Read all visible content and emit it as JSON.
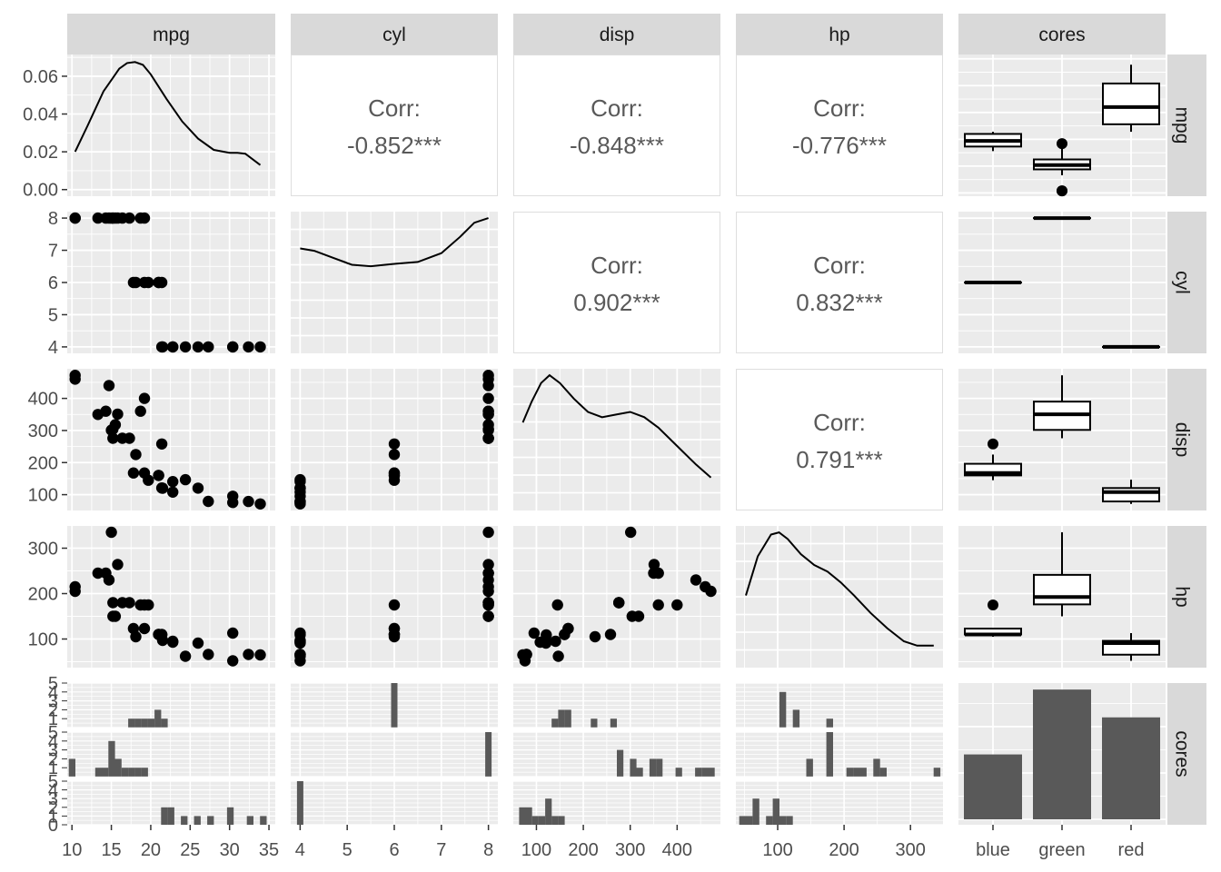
{
  "chart_data": {
    "type": "scatter",
    "plot_kind": "pairs",
    "variables": [
      "mpg",
      "cyl",
      "disp",
      "hp",
      "cores"
    ],
    "strip_labels_top": [
      "mpg",
      "cyl",
      "disp",
      "hp",
      "cores"
    ],
    "strip_labels_right": [
      "mpg",
      "cyl",
      "disp",
      "hp",
      "cores"
    ],
    "axes": {
      "mpg": {
        "range": [
          9.4,
          35.8
        ],
        "ticks": [
          10,
          15,
          20,
          25,
          30,
          35
        ],
        "tick_labels": [
          "10",
          "15",
          "20",
          "25",
          "30",
          "35"
        ]
      },
      "cyl": {
        "range": [
          3.8,
          8.2
        ],
        "ticks": [
          4,
          5,
          6,
          7,
          8
        ],
        "tick_labels": [
          "4",
          "5",
          "6",
          "7",
          "8"
        ]
      },
      "disp": {
        "range": [
          50.7,
          492.3
        ],
        "ticks": [
          100,
          200,
          300,
          400
        ],
        "tick_labels": [
          "100",
          "200",
          "300",
          "400"
        ]
      },
      "hp": {
        "range": [
          37,
          349
        ],
        "ticks": [
          100,
          200,
          300
        ],
        "tick_labels": [
          "100",
          "200",
          "300"
        ]
      },
      "cores": {
        "categories": [
          "blue",
          "green",
          "red"
        ]
      },
      "density_y": {
        "range": [
          -0.0035,
          0.0715
        ],
        "ticks": [
          0,
          0.02,
          0.04,
          0.06
        ],
        "tick_labels": [
          "0.00",
          "0.02",
          "0.04",
          "0.06"
        ]
      },
      "count_y": {
        "range": [
          0,
          5
        ],
        "ticks": [
          0,
          1,
          2,
          3,
          4,
          5
        ],
        "tick_labels": [
          "0",
          "1",
          "2",
          "3",
          "4",
          "5"
        ]
      }
    },
    "correlations": [
      {
        "pair": [
          "cyl",
          "mpg"
        ],
        "label": "Corr:",
        "value": "-0.852***"
      },
      {
        "pair": [
          "disp",
          "mpg"
        ],
        "label": "Corr:",
        "value": "-0.848***"
      },
      {
        "pair": [
          "hp",
          "mpg"
        ],
        "label": "Corr:",
        "value": "-0.776***"
      },
      {
        "pair": [
          "disp",
          "cyl"
        ],
        "label": "Corr:",
        "value": "0.902***"
      },
      {
        "pair": [
          "hp",
          "cyl"
        ],
        "label": "Corr:",
        "value": "0.832***"
      },
      {
        "pair": [
          "hp",
          "disp"
        ],
        "label": "Corr:",
        "value": "0.791***"
      }
    ],
    "densities": {
      "mpg": [
        [
          10.4,
          0.02
        ],
        [
          12,
          0.034
        ],
        [
          14,
          0.052
        ],
        [
          16,
          0.064
        ],
        [
          17,
          0.067
        ],
        [
          18,
          0.0675
        ],
        [
          19,
          0.066
        ],
        [
          20,
          0.061
        ],
        [
          22,
          0.048
        ],
        [
          24,
          0.036
        ],
        [
          26,
          0.027
        ],
        [
          28,
          0.021
        ],
        [
          30,
          0.0195
        ],
        [
          31,
          0.0195
        ],
        [
          32,
          0.019
        ],
        [
          33.9,
          0.013
        ]
      ],
      "cyl": [
        [
          4,
          0.21
        ],
        [
          4.3,
          0.205
        ],
        [
          4.7,
          0.19
        ],
        [
          5.1,
          0.175
        ],
        [
          5.5,
          0.172
        ],
        [
          6,
          0.177
        ],
        [
          6.5,
          0.181
        ],
        [
          7,
          0.2
        ],
        [
          7.4,
          0.235
        ],
        [
          7.7,
          0.265
        ],
        [
          8,
          0.275
        ]
      ],
      "disp": [
        [
          71.1,
          0.0031
        ],
        [
          90,
          0.0039
        ],
        [
          110,
          0.0046
        ],
        [
          128,
          0.0049
        ],
        [
          150,
          0.0046
        ],
        [
          180,
          0.004
        ],
        [
          210,
          0.0035
        ],
        [
          240,
          0.0033
        ],
        [
          270,
          0.0034
        ],
        [
          300,
          0.0035
        ],
        [
          330,
          0.0033
        ],
        [
          360,
          0.0029
        ],
        [
          400,
          0.0022
        ],
        [
          440,
          0.0015
        ],
        [
          472,
          0.001
        ]
      ],
      "hp": [
        [
          52,
          0.003
        ],
        [
          70,
          0.0048
        ],
        [
          90,
          0.0058
        ],
        [
          102,
          0.0059
        ],
        [
          115,
          0.0056
        ],
        [
          135,
          0.0049
        ],
        [
          155,
          0.0044
        ],
        [
          175,
          0.0041
        ],
        [
          195,
          0.0036
        ],
        [
          215,
          0.003
        ],
        [
          240,
          0.0022
        ],
        [
          265,
          0.0015
        ],
        [
          290,
          0.0009
        ],
        [
          310,
          0.0007
        ],
        [
          335,
          0.0007
        ]
      ]
    },
    "points": [
      {
        "mpg": 21.0,
        "cyl": 6,
        "disp": 160,
        "hp": 110,
        "cores": "blue"
      },
      {
        "mpg": 21.0,
        "cyl": 6,
        "disp": 160,
        "hp": 110,
        "cores": "blue"
      },
      {
        "mpg": 22.8,
        "cyl": 4,
        "disp": 108,
        "hp": 93,
        "cores": "red"
      },
      {
        "mpg": 21.4,
        "cyl": 6,
        "disp": 258,
        "hp": 110,
        "cores": "blue"
      },
      {
        "mpg": 18.7,
        "cyl": 8,
        "disp": 360,
        "hp": 175,
        "cores": "green"
      },
      {
        "mpg": 18.1,
        "cyl": 6,
        "disp": 225,
        "hp": 105,
        "cores": "blue"
      },
      {
        "mpg": 14.3,
        "cyl": 8,
        "disp": 360,
        "hp": 245,
        "cores": "green"
      },
      {
        "mpg": 24.4,
        "cyl": 4,
        "disp": 146.7,
        "hp": 62,
        "cores": "red"
      },
      {
        "mpg": 22.8,
        "cyl": 4,
        "disp": 140.8,
        "hp": 95,
        "cores": "red"
      },
      {
        "mpg": 19.2,
        "cyl": 6,
        "disp": 167.6,
        "hp": 123,
        "cores": "blue"
      },
      {
        "mpg": 17.8,
        "cyl": 6,
        "disp": 167.6,
        "hp": 123,
        "cores": "blue"
      },
      {
        "mpg": 16.4,
        "cyl": 8,
        "disp": 275.8,
        "hp": 180,
        "cores": "green"
      },
      {
        "mpg": 17.3,
        "cyl": 8,
        "disp": 275.8,
        "hp": 180,
        "cores": "green"
      },
      {
        "mpg": 15.2,
        "cyl": 8,
        "disp": 275.8,
        "hp": 180,
        "cores": "green"
      },
      {
        "mpg": 10.4,
        "cyl": 8,
        "disp": 472,
        "hp": 205,
        "cores": "green"
      },
      {
        "mpg": 10.4,
        "cyl": 8,
        "disp": 460,
        "hp": 215,
        "cores": "green"
      },
      {
        "mpg": 14.7,
        "cyl": 8,
        "disp": 440,
        "hp": 230,
        "cores": "green"
      },
      {
        "mpg": 32.4,
        "cyl": 4,
        "disp": 78.7,
        "hp": 66,
        "cores": "red"
      },
      {
        "mpg": 30.4,
        "cyl": 4,
        "disp": 75.7,
        "hp": 52,
        "cores": "red"
      },
      {
        "mpg": 33.9,
        "cyl": 4,
        "disp": 71.1,
        "hp": 65,
        "cores": "red"
      },
      {
        "mpg": 21.5,
        "cyl": 4,
        "disp": 120.1,
        "hp": 97,
        "cores": "red"
      },
      {
        "mpg": 15.5,
        "cyl": 8,
        "disp": 318,
        "hp": 150,
        "cores": "green"
      },
      {
        "mpg": 15.2,
        "cyl": 8,
        "disp": 304,
        "hp": 150,
        "cores": "green"
      },
      {
        "mpg": 13.3,
        "cyl": 8,
        "disp": 350,
        "hp": 245,
        "cores": "green"
      },
      {
        "mpg": 19.2,
        "cyl": 8,
        "disp": 400,
        "hp": 175,
        "cores": "green"
      },
      {
        "mpg": 27.3,
        "cyl": 4,
        "disp": 79,
        "hp": 66,
        "cores": "red"
      },
      {
        "mpg": 26.0,
        "cyl": 4,
        "disp": 120.3,
        "hp": 91,
        "cores": "red"
      },
      {
        "mpg": 30.4,
        "cyl": 4,
        "disp": 95.1,
        "hp": 113,
        "cores": "red"
      },
      {
        "mpg": 15.8,
        "cyl": 8,
        "disp": 351,
        "hp": 264,
        "cores": "green"
      },
      {
        "mpg": 19.7,
        "cyl": 6,
        "disp": 145,
        "hp": 175,
        "cores": "blue"
      },
      {
        "mpg": 15.0,
        "cyl": 8,
        "disp": 301,
        "hp": 335,
        "cores": "green"
      },
      {
        "mpg": 21.4,
        "cyl": 4,
        "disp": 121,
        "hp": 109,
        "cores": "red"
      }
    ],
    "boxplots": {
      "mpg": {
        "blue": {
          "lower": 17.8,
          "q1": 18.65,
          "median": 19.7,
          "q3": 21.0,
          "upper": 21.4,
          "outliers": []
        },
        "green": {
          "lower": 13.3,
          "q1": 14.4,
          "median": 15.2,
          "q3": 16.25,
          "upper": 18.7,
          "outliers": [
            19.2,
            10.4,
            10.4
          ]
        },
        "red": {
          "lower": 21.4,
          "q1": 22.8,
          "median": 26.0,
          "q3": 30.4,
          "upper": 33.9,
          "outliers": []
        }
      },
      "cyl": {
        "blue": {
          "lower": 6,
          "q1": 6,
          "median": 6,
          "q3": 6,
          "upper": 6,
          "outliers": []
        },
        "green": {
          "lower": 8,
          "q1": 8,
          "median": 8,
          "q3": 8,
          "upper": 8,
          "outliers": []
        },
        "red": {
          "lower": 4,
          "q1": 4,
          "median": 4,
          "q3": 4,
          "upper": 4,
          "outliers": []
        }
      },
      "disp": {
        "blue": {
          "lower": 145,
          "q1": 160,
          "median": 167.6,
          "q3": 196.3,
          "upper": 225,
          "outliers": [
            258
          ]
        },
        "green": {
          "lower": 275.8,
          "q1": 301.75,
          "median": 350.5,
          "q3": 390,
          "upper": 472,
          "outliers": []
        },
        "red": {
          "lower": 71.1,
          "q1": 78.85,
          "median": 108,
          "q3": 120.65,
          "upper": 146.7,
          "outliers": []
        }
      },
      "hp": {
        "blue": {
          "lower": 105,
          "q1": 110,
          "median": 110,
          "q3": 123,
          "upper": 123,
          "outliers": [
            175
          ]
        },
        "green": {
          "lower": 150,
          "q1": 176.25,
          "median": 192.5,
          "q3": 241.25,
          "upper": 335,
          "outliers": []
        },
        "red": {
          "lower": 52,
          "q1": 65.5,
          "median": 91,
          "q3": 96,
          "upper": 113,
          "outliers": []
        }
      }
    },
    "bar_counts": {
      "categories": [
        "blue",
        "green",
        "red"
      ],
      "values": [
        7,
        14,
        11
      ]
    },
    "colors": {
      "panel_bg": "#ebebeb",
      "grid": "#ffffff",
      "strip_bg": "#d9d9d9",
      "strip_text": "#1a1a1a",
      "ink": "#000000",
      "bar_fill": "#595959",
      "tick_text": "#4d4d4d",
      "corr_text": "#595959"
    }
  }
}
